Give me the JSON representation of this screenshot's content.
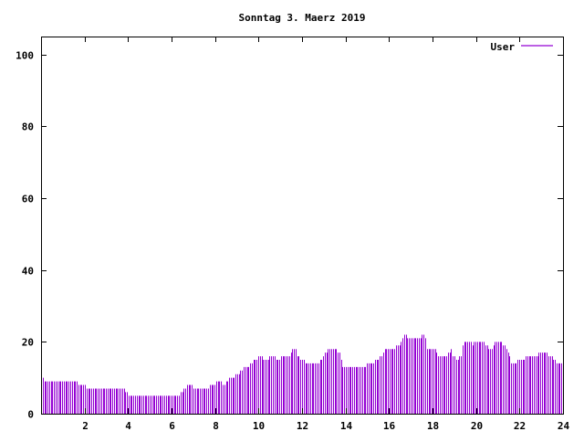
{
  "chart_data": {
    "type": "bar",
    "title": "Sonntag 3. Maerz 2019",
    "xlabel": "",
    "ylabel": "",
    "xlim": [
      0,
      24
    ],
    "ylim": [
      0,
      105
    ],
    "x_ticks": [
      "2",
      "4",
      "6",
      "8",
      "10",
      "12",
      "14",
      "16",
      "18",
      "20",
      "22",
      "24"
    ],
    "y_ticks": [
      "0",
      "20",
      "40",
      "60",
      "80",
      "100"
    ],
    "legend_position": "top-right",
    "grid": false,
    "series": [
      {
        "name": "User",
        "color": "#9400d3",
        "values": [
          10,
          10,
          9,
          9,
          9,
          9,
          9,
          9,
          9,
          9,
          9,
          9,
          9,
          9,
          9,
          9,
          9,
          9,
          9,
          9,
          9,
          9,
          9,
          8,
          8,
          8,
          8,
          8,
          7,
          7,
          7,
          7,
          7,
          7,
          7,
          7,
          7,
          7,
          7,
          7,
          7,
          7,
          7,
          7,
          7,
          7,
          7,
          7,
          7,
          7,
          7,
          7,
          6,
          6,
          5,
          5,
          5,
          5,
          5,
          5,
          5,
          5,
          5,
          5,
          5,
          5,
          5,
          5,
          5,
          5,
          5,
          5,
          5,
          5,
          5,
          5,
          5,
          5,
          5,
          5,
          5,
          5,
          5,
          5,
          5,
          5,
          6,
          6,
          7,
          7,
          8,
          8,
          8,
          8,
          7,
          7,
          7,
          7,
          7,
          7,
          7,
          7,
          7,
          7,
          8,
          8,
          8,
          8,
          9,
          9,
          9,
          9,
          8,
          8,
          9,
          9,
          10,
          10,
          10,
          10,
          11,
          11,
          11,
          12,
          12,
          13,
          13,
          13,
          13,
          14,
          14,
          15,
          15,
          15,
          16,
          16,
          16,
          15,
          15,
          15,
          15,
          16,
          16,
          16,
          16,
          15,
          15,
          15,
          16,
          16,
          16,
          16,
          16,
          16,
          17,
          18,
          18,
          18,
          16,
          16,
          15,
          15,
          15,
          14,
          14,
          14,
          14,
          14,
          14,
          14,
          14,
          14,
          15,
          15,
          16,
          17,
          17,
          18,
          18,
          18,
          18,
          18,
          18,
          17,
          17,
          15,
          13,
          13,
          13,
          13,
          13,
          13,
          13,
          13,
          13,
          13,
          13,
          13,
          13,
          13,
          13,
          14,
          14,
          14,
          14,
          14,
          15,
          15,
          15,
          16,
          16,
          17,
          18,
          18,
          18,
          18,
          18,
          18,
          18,
          19,
          19,
          19,
          20,
          21,
          22,
          22,
          21,
          21,
          21,
          21,
          21,
          21,
          21,
          21,
          21,
          22,
          22,
          21,
          18,
          18,
          18,
          18,
          18,
          18,
          17,
          16,
          16,
          16,
          16,
          16,
          16,
          17,
          17,
          18,
          16,
          16,
          15,
          15,
          16,
          16,
          19,
          20,
          20,
          20,
          20,
          20,
          19,
          20,
          20,
          20,
          20,
          20,
          20,
          20,
          19,
          19,
          18,
          18,
          18,
          19,
          20,
          20,
          20,
          20,
          20,
          19,
          19,
          18,
          17,
          16,
          14,
          14,
          14,
          14,
          15,
          15,
          15,
          15,
          15,
          16,
          16,
          16,
          16,
          16,
          16,
          16,
          16,
          17,
          17,
          17,
          17,
          17,
          17,
          16,
          16,
          16,
          15,
          15,
          14,
          14,
          14,
          14
        ]
      }
    ]
  }
}
